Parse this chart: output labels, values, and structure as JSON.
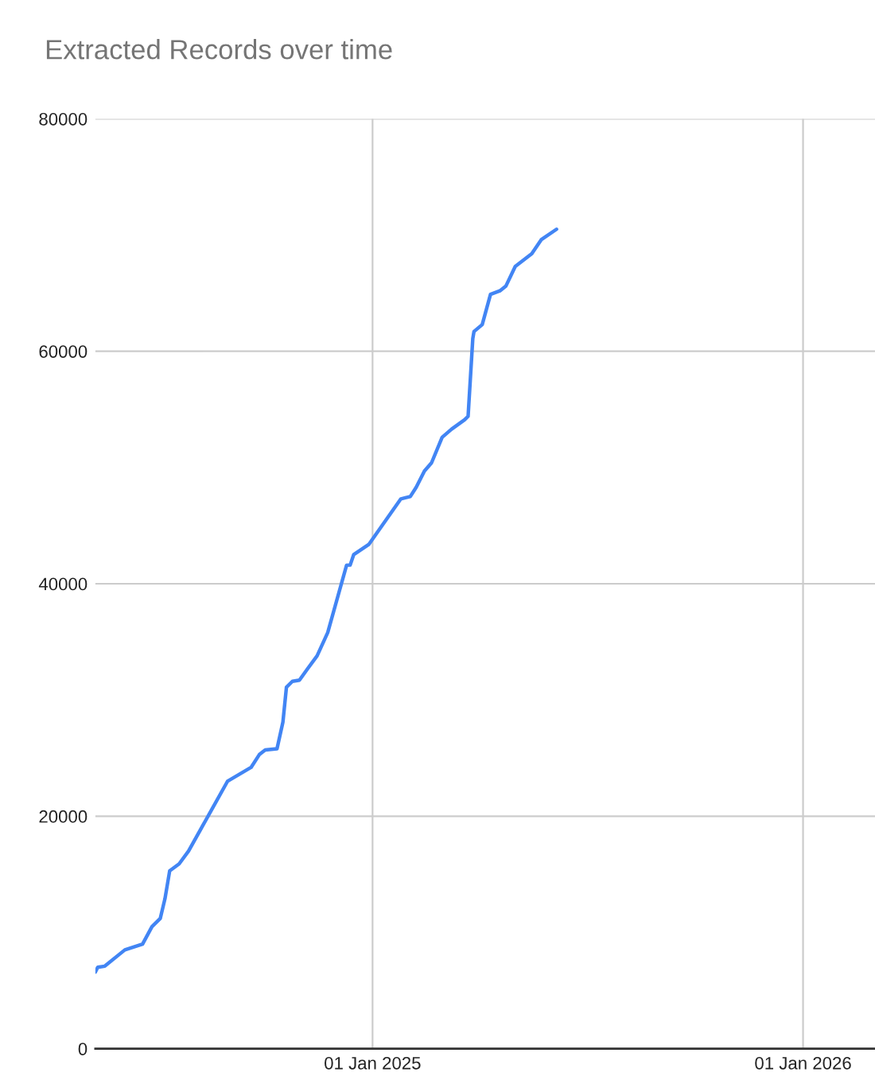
{
  "chart_data": {
    "type": "line",
    "title": "Extracted Records over time",
    "x": [
      "2024-05-11",
      "2024-05-13",
      "2024-05-19",
      "2024-06-05",
      "2024-06-20",
      "2024-06-28",
      "2024-07-05",
      "2024-07-09",
      "2024-07-13",
      "2024-07-21",
      "2024-07-29",
      "2024-08-31",
      "2024-09-20",
      "2024-09-27",
      "2024-10-02",
      "2024-10-12",
      "2024-10-17",
      "2024-10-20",
      "2024-10-25",
      "2024-10-31",
      "2024-11-07",
      "2024-11-15",
      "2024-11-24",
      "2024-12-10",
      "2024-12-13",
      "2024-12-16",
      "2024-12-29",
      "2025-01-25",
      "2025-02-02",
      "2025-02-07",
      "2025-02-14",
      "2025-02-20",
      "2025-03-01",
      "2025-03-09",
      "2025-03-20",
      "2025-03-23",
      "2025-03-27",
      "2025-03-28",
      "2025-04-04",
      "2025-04-11",
      "2025-04-19",
      "2025-04-24",
      "2025-05-02",
      "2025-05-16",
      "2025-05-24",
      "2025-06-06"
    ],
    "series": [
      {
        "color": "#4285f4",
        "values": [
          6600,
          7000,
          7100,
          8500,
          9000,
          10500,
          11200,
          12900,
          15300,
          15900,
          17000,
          23000,
          24200,
          25300,
          25700,
          25800,
          28100,
          31100,
          31600,
          31700,
          32700,
          33800,
          35800,
          41600,
          41600,
          42500,
          43400,
          47300,
          47500,
          48300,
          49700,
          50400,
          52600,
          53300,
          54100,
          54400,
          61100,
          61700,
          62300,
          64900,
          65200,
          65600,
          67300,
          68400,
          69600,
          70500
        ]
      }
    ],
    "xlim": [
      "2024-05-11",
      "2026-03-03"
    ],
    "xticks": [
      {
        "value": "2025-01-01",
        "label": "01 Jan 2025"
      },
      {
        "value": "2026-01-01",
        "label": "01 Jan 2026"
      }
    ],
    "ylim": [
      0,
      80000
    ],
    "yticks": [
      0,
      20000,
      40000,
      60000,
      80000
    ],
    "grid": true,
    "legend": false,
    "marker": "none",
    "line_style": "solid"
  }
}
